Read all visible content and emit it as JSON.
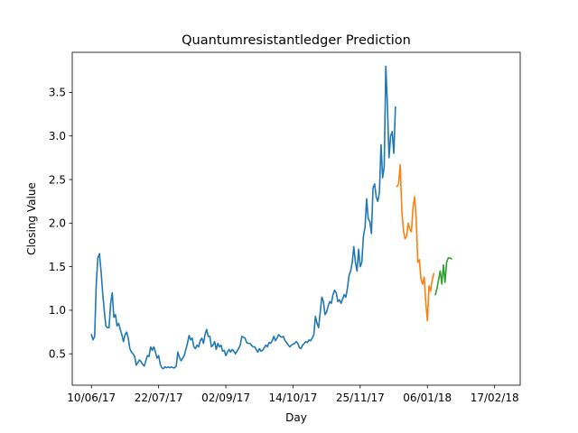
{
  "chart_data": {
    "type": "line",
    "title": "Quantumresistantledger Prediction",
    "xlabel": "Day",
    "ylabel": "Closing Value",
    "x_tick_labels": [
      "10/06/17",
      "22/07/17",
      "02/09/17",
      "14/10/17",
      "25/11/17",
      "06/01/18",
      "17/02/18"
    ],
    "x_tick_days": [
      0,
      42,
      84,
      126,
      168,
      210,
      252
    ],
    "y_ticks": [
      0.5,
      1.0,
      1.5,
      2.0,
      2.5,
      3.0,
      3.5
    ],
    "xlim": [
      -12,
      268
    ],
    "ylim": [
      0.14,
      3.96
    ],
    "grid": false,
    "series": [
      {
        "color": "#1f77b4",
        "points": [
          [
            0,
            0.72
          ],
          [
            1,
            0.66
          ],
          [
            2,
            0.7
          ],
          [
            3,
            1.3
          ],
          [
            4,
            1.6
          ],
          [
            5,
            1.65
          ],
          [
            6,
            1.45
          ],
          [
            7,
            1.2
          ],
          [
            8,
            1.0
          ],
          [
            9,
            0.82
          ],
          [
            10,
            0.8
          ],
          [
            11,
            0.8
          ],
          [
            12,
            1.08
          ],
          [
            13,
            1.2
          ],
          [
            14,
            0.92
          ],
          [
            15,
            0.95
          ],
          [
            16,
            0.82
          ],
          [
            17,
            0.85
          ],
          [
            18,
            0.78
          ],
          [
            19,
            0.72
          ],
          [
            20,
            0.64
          ],
          [
            21,
            0.72
          ],
          [
            22,
            0.75
          ],
          [
            23,
            0.68
          ],
          [
            24,
            0.56
          ],
          [
            25,
            0.52
          ],
          [
            26,
            0.5
          ],
          [
            27,
            0.47
          ],
          [
            28,
            0.37
          ],
          [
            29,
            0.4
          ],
          [
            30,
            0.43
          ],
          [
            31,
            0.41
          ],
          [
            32,
            0.38
          ],
          [
            33,
            0.36
          ],
          [
            34,
            0.42
          ],
          [
            35,
            0.48
          ],
          [
            36,
            0.47
          ],
          [
            37,
            0.58
          ],
          [
            38,
            0.54
          ],
          [
            39,
            0.58
          ],
          [
            40,
            0.52
          ],
          [
            41,
            0.45
          ],
          [
            42,
            0.48
          ],
          [
            43,
            0.38
          ],
          [
            44,
            0.34
          ],
          [
            45,
            0.33
          ],
          [
            46,
            0.35
          ],
          [
            47,
            0.34
          ],
          [
            48,
            0.35
          ],
          [
            49,
            0.34
          ],
          [
            50,
            0.35
          ],
          [
            51,
            0.34
          ],
          [
            52,
            0.34
          ],
          [
            53,
            0.36
          ],
          [
            54,
            0.52
          ],
          [
            55,
            0.46
          ],
          [
            56,
            0.42
          ],
          [
            57,
            0.45
          ],
          [
            58,
            0.48
          ],
          [
            59,
            0.55
          ],
          [
            60,
            0.62
          ],
          [
            61,
            0.71
          ],
          [
            62,
            0.66
          ],
          [
            63,
            0.68
          ],
          [
            64,
            0.58
          ],
          [
            65,
            0.56
          ],
          [
            66,
            0.6
          ],
          [
            67,
            0.58
          ],
          [
            68,
            0.65
          ],
          [
            69,
            0.68
          ],
          [
            70,
            0.62
          ],
          [
            71,
            0.72
          ],
          [
            72,
            0.78
          ],
          [
            73,
            0.7
          ],
          [
            74,
            0.7
          ],
          [
            75,
            0.58
          ],
          [
            76,
            0.6
          ],
          [
            77,
            0.64
          ],
          [
            78,
            0.55
          ],
          [
            79,
            0.62
          ],
          [
            80,
            0.58
          ],
          [
            81,
            0.6
          ],
          [
            82,
            0.53
          ],
          [
            83,
            0.54
          ],
          [
            84,
            0.48
          ],
          [
            85,
            0.52
          ],
          [
            86,
            0.55
          ],
          [
            87,
            0.52
          ],
          [
            88,
            0.55
          ],
          [
            89,
            0.53
          ],
          [
            90,
            0.5
          ],
          [
            91,
            0.53
          ],
          [
            92,
            0.56
          ],
          [
            93,
            0.6
          ],
          [
            94,
            0.7
          ],
          [
            95,
            0.69
          ],
          [
            96,
            0.68
          ],
          [
            97,
            0.63
          ],
          [
            98,
            0.62
          ],
          [
            99,
            0.62
          ],
          [
            100,
            0.6
          ],
          [
            101,
            0.58
          ],
          [
            102,
            0.58
          ],
          [
            103,
            0.55
          ],
          [
            104,
            0.52
          ],
          [
            105,
            0.56
          ],
          [
            106,
            0.53
          ],
          [
            107,
            0.54
          ],
          [
            108,
            0.57
          ],
          [
            109,
            0.6
          ],
          [
            110,
            0.58
          ],
          [
            111,
            0.63
          ],
          [
            112,
            0.62
          ],
          [
            113,
            0.65
          ],
          [
            114,
            0.7
          ],
          [
            115,
            0.65
          ],
          [
            116,
            0.68
          ],
          [
            117,
            0.72
          ],
          [
            118,
            0.7
          ],
          [
            119,
            0.69
          ],
          [
            120,
            0.7
          ],
          [
            121,
            0.65
          ],
          [
            122,
            0.63
          ],
          [
            123,
            0.6
          ],
          [
            124,
            0.58
          ],
          [
            125,
            0.6
          ],
          [
            126,
            0.61
          ],
          [
            127,
            0.62
          ],
          [
            128,
            0.64
          ],
          [
            129,
            0.62
          ],
          [
            130,
            0.57
          ],
          [
            131,
            0.56
          ],
          [
            132,
            0.6
          ],
          [
            133,
            0.62
          ],
          [
            134,
            0.64
          ],
          [
            135,
            0.63
          ],
          [
            136,
            0.66
          ],
          [
            137,
            0.65
          ],
          [
            138,
            0.68
          ],
          [
            139,
            0.72
          ],
          [
            140,
            0.93
          ],
          [
            141,
            0.85
          ],
          [
            142,
            0.8
          ],
          [
            143,
            0.98
          ],
          [
            144,
            1.15
          ],
          [
            145,
            1.1
          ],
          [
            146,
            0.95
          ],
          [
            147,
            0.98
          ],
          [
            148,
            1.05
          ],
          [
            149,
            1.1
          ],
          [
            150,
            1.08
          ],
          [
            151,
            1.18
          ],
          [
            152,
            1.23
          ],
          [
            153,
            1.2
          ],
          [
            154,
            1.1
          ],
          [
            155,
            1.12
          ],
          [
            156,
            1.08
          ],
          [
            157,
            1.13
          ],
          [
            158,
            1.18
          ],
          [
            159,
            1.15
          ],
          [
            160,
            1.25
          ],
          [
            161,
            1.4
          ],
          [
            162,
            1.45
          ],
          [
            163,
            1.55
          ],
          [
            164,
            1.73
          ],
          [
            165,
            1.55
          ],
          [
            166,
            1.45
          ],
          [
            167,
            1.7
          ],
          [
            168,
            1.5
          ],
          [
            169,
            1.55
          ],
          [
            170,
            1.85
          ],
          [
            171,
            1.95
          ],
          [
            172,
            2.28
          ],
          [
            173,
            2.05
          ],
          [
            174,
            2.02
          ],
          [
            175,
            1.88
          ],
          [
            176,
            2.4
          ],
          [
            177,
            2.45
          ],
          [
            178,
            2.3
          ],
          [
            179,
            2.25
          ],
          [
            180,
            2.35
          ],
          [
            181,
            2.9
          ],
          [
            182,
            2.52
          ],
          [
            183,
            2.65
          ],
          [
            184,
            3.8
          ],
          [
            185,
            3.35
          ],
          [
            186,
            2.75
          ],
          [
            187,
            3.0
          ],
          [
            188,
            3.05
          ],
          [
            189,
            2.8
          ],
          [
            190,
            3.33
          ]
        ]
      },
      {
        "color": "#ff7f0e",
        "points": [
          [
            191,
            2.42
          ],
          [
            192,
            2.45
          ],
          [
            193,
            2.67
          ],
          [
            194,
            2.15
          ],
          [
            195,
            1.92
          ],
          [
            196,
            1.82
          ],
          [
            197,
            1.85
          ],
          [
            198,
            2.0
          ],
          [
            199,
            1.93
          ],
          [
            200,
            1.9
          ],
          [
            201,
            2.18
          ],
          [
            202,
            2.3
          ],
          [
            203,
            2.05
          ],
          [
            204,
            1.55
          ],
          [
            205,
            1.58
          ],
          [
            206,
            1.35
          ],
          [
            207,
            1.3
          ],
          [
            208,
            1.38
          ],
          [
            209,
            1.08
          ],
          [
            210,
            0.88
          ],
          [
            211,
            1.28
          ],
          [
            212,
            1.22
          ],
          [
            213,
            1.35
          ],
          [
            214,
            1.42
          ]
        ]
      },
      {
        "color": "#2ca02c",
        "points": [
          [
            215,
            1.18
          ],
          [
            216,
            1.25
          ],
          [
            217,
            1.35
          ],
          [
            218,
            1.45
          ],
          [
            219,
            1.3
          ],
          [
            220,
            1.52
          ],
          [
            221,
            1.32
          ],
          [
            222,
            1.55
          ],
          [
            223,
            1.6
          ],
          [
            224,
            1.6
          ],
          [
            225,
            1.59
          ]
        ]
      }
    ]
  }
}
